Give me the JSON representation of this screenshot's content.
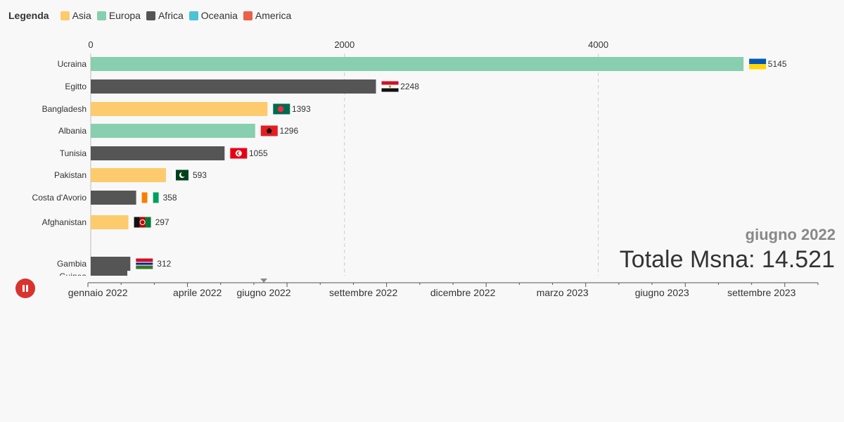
{
  "legend": {
    "title": "Legenda",
    "items": [
      {
        "label": "Asia",
        "color": "#fdcb6e"
      },
      {
        "label": "Europa",
        "color": "#87cfae"
      },
      {
        "label": "Africa",
        "color": "#555555"
      },
      {
        "label": "Oceania",
        "color": "#4cc2d6"
      },
      {
        "label": "America",
        "color": "#ec6048"
      }
    ]
  },
  "chart_data": {
    "type": "bar",
    "orientation": "horizontal",
    "x_ticks": [
      0,
      2000,
      4000
    ],
    "xlim": [
      0,
      5600
    ],
    "grid": true,
    "categories": [
      "Ucraina",
      "Egitto",
      "Bangladesh",
      "Albania",
      "Tunisia",
      "Pakistan",
      "Costa d'Avorio",
      "Afghanistan",
      "Gambia"
    ],
    "values": [
      5145,
      2248,
      1393,
      1296,
      1055,
      593,
      358,
      297,
      312
    ],
    "continents": [
      "Europa",
      "Africa",
      "Asia",
      "Europa",
      "Africa",
      "Asia",
      "Africa",
      "Asia",
      "Africa"
    ],
    "flags": [
      "ua-flag-icon",
      "eg-flag-icon",
      "bd-flag-icon",
      "al-flag-icon",
      "tn-flag-icon",
      "pk-flag-icon",
      "ci-flag-icon",
      "af-flag-icon",
      "gm-flag-icon"
    ],
    "partial_category": "Guinea"
  },
  "period": "giugno 2022",
  "total": "Totale Msna: 14.521",
  "timeline": {
    "labels": [
      "gennaio 2022",
      "aprile 2022",
      "giugno 2022",
      "settembre 2022",
      "dicembre 2022",
      "marzo 2023",
      "giugno 2023",
      "settembre 2023"
    ],
    "current": "giugno 2022"
  },
  "controls": {
    "play_state": "pause-icon"
  }
}
